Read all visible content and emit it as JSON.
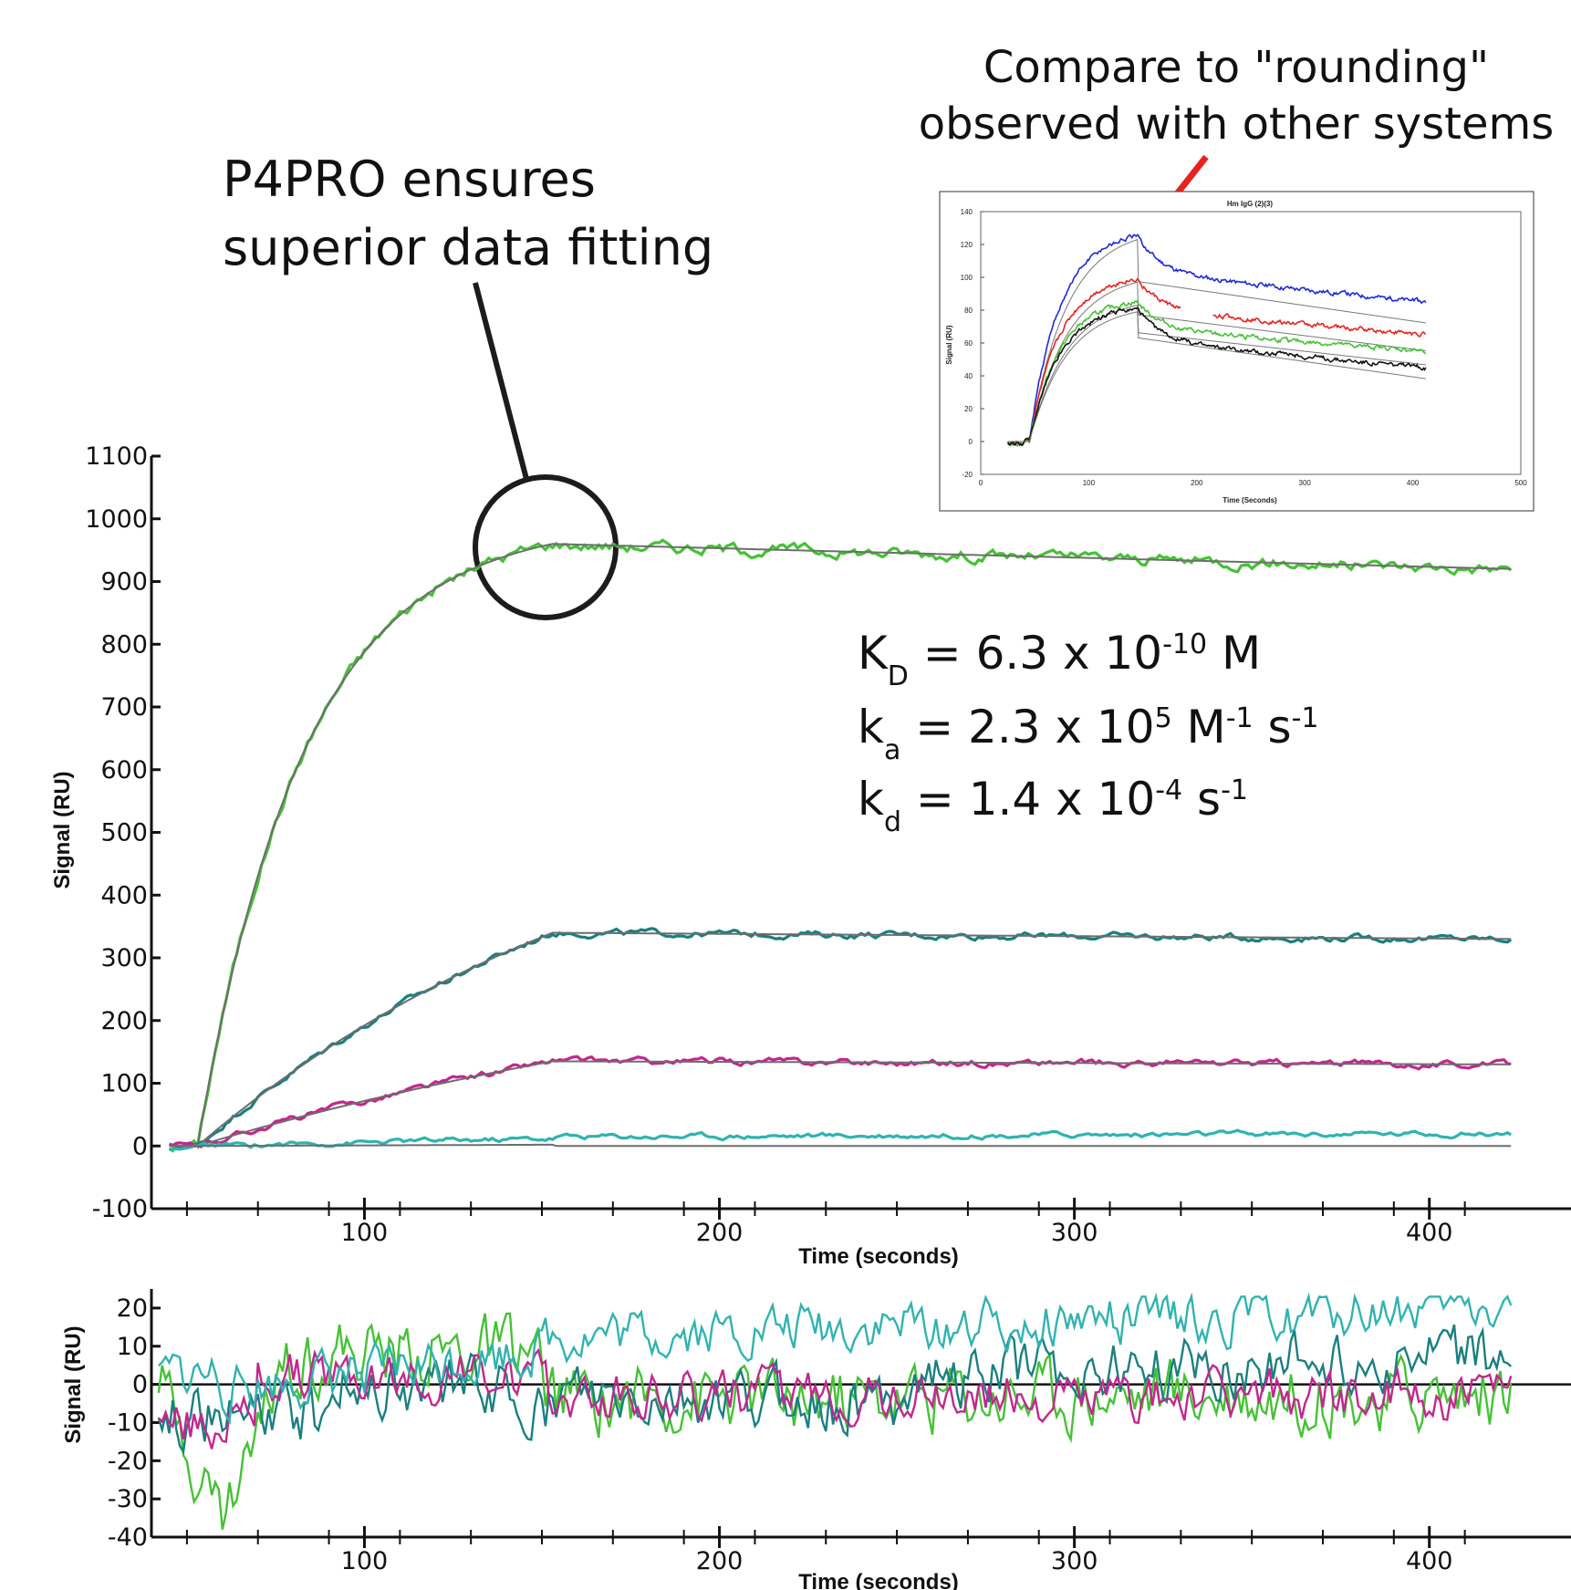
{
  "annotations": {
    "callout": [
      "P4PRO ensures",
      "superior data fitting"
    ],
    "compare": [
      "Compare to \"rounding\"",
      "observed with other systems"
    ],
    "constants": [
      {
        "sym": "K",
        "sub": "D",
        "eq": " = 6.3 x 10",
        "exp": "-10",
        "unit": " M",
        "unit_exp": "",
        "unit2": "",
        "unit2_exp": ""
      },
      {
        "sym": "k",
        "sub": "a",
        "eq": " = 2.3 x 10",
        "exp": "5",
        "unit": " M",
        "unit_exp": "-1",
        "unit2": " s",
        "unit2_exp": "-1"
      },
      {
        "sym": "k",
        "sub": "d",
        "eq": " = 1.4 x 10",
        "exp": "-4",
        "unit": " s",
        "unit_exp": "-1",
        "unit2": "",
        "unit2_exp": ""
      }
    ]
  },
  "colors": {
    "green": "#44c234",
    "teal": "#1a7f80",
    "magenta": "#c4268f",
    "cyan": "#2fb3b1",
    "fit": "#6d6d6d",
    "annotation": "#1c1c1c",
    "arrow": "#e8231f"
  },
  "chart_data": [
    {
      "type": "line",
      "id": "main",
      "xlabel": "Time (seconds)",
      "ylabel": "Signal (RU)",
      "xlim": [
        40,
        425
      ],
      "ylim": [
        -100,
        1100
      ],
      "xticks": [
        100,
        200,
        300,
        400
      ],
      "yticks": [
        -100,
        0,
        100,
        200,
        300,
        400,
        500,
        600,
        700,
        800,
        900,
        1000,
        1100
      ],
      "injection_start": 53,
      "association_end": 153,
      "series": [
        {
          "color": "green",
          "plateau": 960,
          "end": 920,
          "tau": 30
        },
        {
          "color": "teal",
          "plateau": 340,
          "end": 330,
          "tau": 130
        },
        {
          "color": "magenta",
          "plateau": 135,
          "end": 130,
          "tau": 200
        },
        {
          "color": "cyan",
          "plateau": 2,
          "end": 18,
          "tau": 300
        }
      ]
    },
    {
      "type": "line",
      "id": "residuals",
      "xlabel": "Time (seconds)",
      "ylabel": "Signal (RU)",
      "xlim": [
        40,
        425
      ],
      "ylim": [
        -40,
        25
      ],
      "xticks": [
        100,
        200,
        300,
        400
      ],
      "yticks": [
        -40,
        -30,
        -20,
        -10,
        0,
        10,
        20
      ]
    },
    {
      "type": "line",
      "id": "inset",
      "title": "Hm IgG (2)(3)",
      "xlabel": "Time (Seconds)",
      "ylabel": "Signal (RU)",
      "xlim": [
        0,
        500
      ],
      "ylim": [
        -20,
        140
      ],
      "xticks": [
        0,
        100,
        200,
        300,
        400,
        500
      ],
      "yticks": [
        -20,
        0,
        20,
        40,
        60,
        80,
        100,
        120,
        140
      ],
      "series_colors": [
        "blue",
        "red",
        "green",
        "black"
      ],
      "peaks": [
        125,
        99,
        85,
        81
      ],
      "ends": [
        85,
        65,
        55,
        45
      ]
    }
  ]
}
